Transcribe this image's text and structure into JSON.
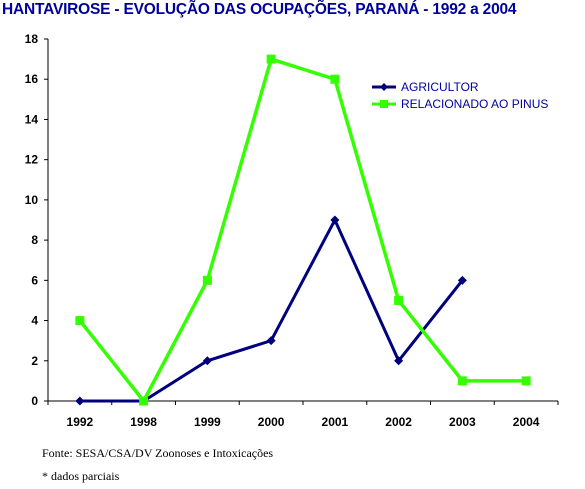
{
  "chart_data": {
    "type": "line",
    "title": "HANTAVIROSE - EVOLUÇÃO DAS OCUPAÇÕES, PARANÁ - 1992 a 2004",
    "xlabel": "",
    "ylabel": "",
    "categories": [
      "1992",
      "1998",
      "1999",
      "2000",
      "2001",
      "2002",
      "2003",
      "2004"
    ],
    "ylim": [
      0,
      18
    ],
    "yticks": [
      0,
      2,
      4,
      6,
      8,
      10,
      12,
      14,
      16,
      18
    ],
    "grid": false,
    "legend_position": "top-right",
    "series": [
      {
        "name": "AGRICULTOR",
        "color": "#00007f",
        "marker": "diamond",
        "values": [
          0,
          0,
          2,
          3,
          9,
          2,
          6,
          null
        ]
      },
      {
        "name": "RELACIONADO AO PINUS",
        "color": "#33ff00",
        "marker": "square",
        "values": [
          4,
          0,
          6,
          17,
          16,
          5,
          1,
          1
        ]
      }
    ]
  },
  "source": "Fonte: SESA/CSA/DV Zoonoses e Intoxicações",
  "note": "* dados parciais"
}
